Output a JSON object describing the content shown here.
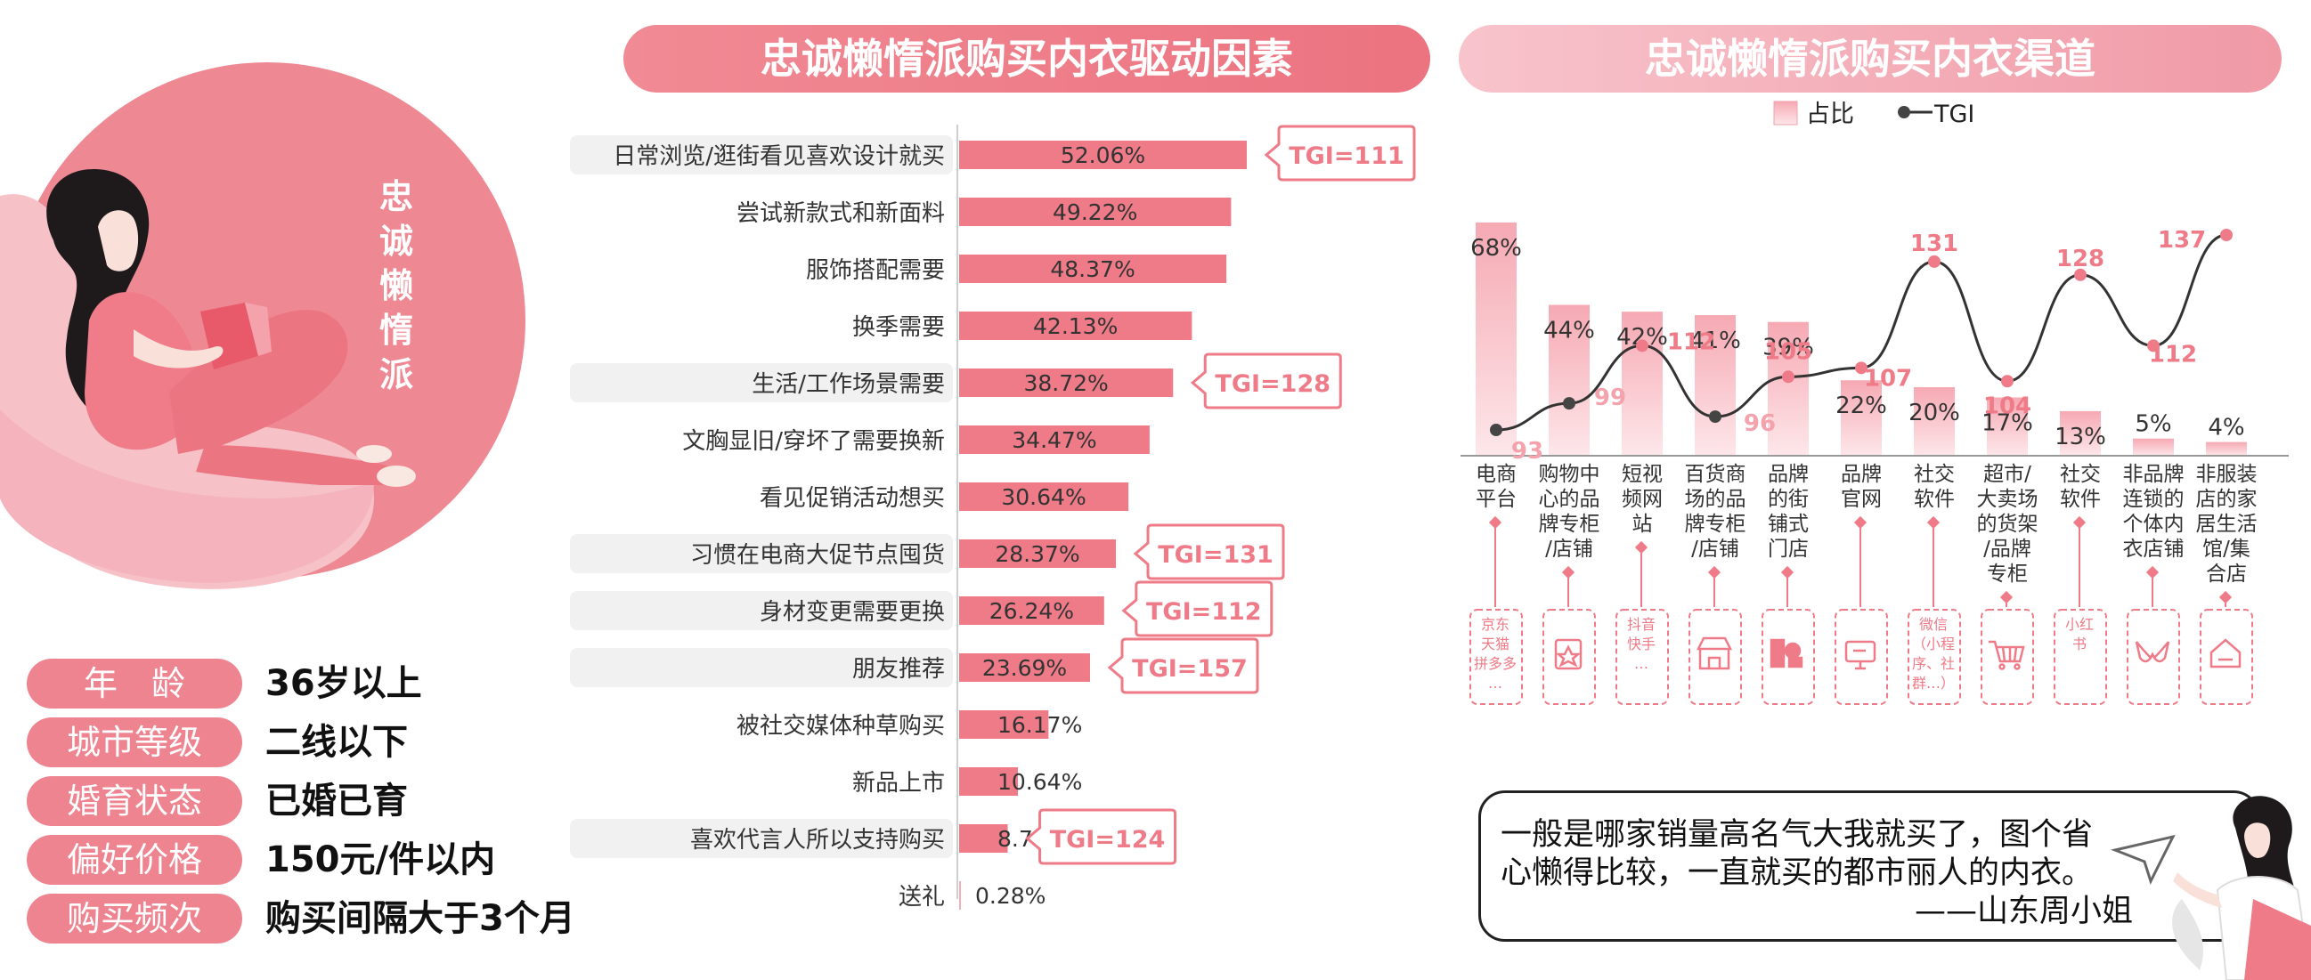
{
  "persona": {
    "title_chars": [
      "忠",
      "诚",
      "懒",
      "惰",
      "派"
    ],
    "profile": [
      {
        "label": "年　龄",
        "value": "36岁以上"
      },
      {
        "label": "城市等级",
        "value": "二线以下"
      },
      {
        "label": "婚育状态",
        "value": "已婚已育"
      },
      {
        "label": "偏好价格",
        "value": "150元/件以内"
      },
      {
        "label": "购买频次",
        "value": "购买间隔大于3个月"
      }
    ]
  },
  "headers": {
    "drivers": "忠诚懒惰派购买内衣驱动因素",
    "channels": "忠诚懒惰派购买内衣渠道"
  },
  "quote": {
    "lines": [
      "一般是哪家销量高名气大我就买了，图个省",
      "心懒得比较，一直就买的都市丽人的内衣。"
    ],
    "author": "——山东周小姐"
  },
  "colors": {
    "accent": "#ee7b87",
    "light_pink": "#f8c8ce",
    "highlight_row": "#f1f1f1",
    "line": "#333333"
  },
  "chart_data": [
    {
      "type": "bar",
      "orientation": "horizontal",
      "title": "忠诚懒惰派购买内衣驱动因素",
      "categories": [
        "日常浏览/逛街看见喜欢设计就买",
        "尝试新款式和新面料",
        "服饰搭配需要",
        "换季需要",
        "生活/工作场景需要",
        "文胸显旧/穿坏了需要换新",
        "看见促销活动想买",
        "习惯在电商大促节点囤货",
        "身材变更需要更换",
        "朋友推荐",
        "被社交媒体种草购买",
        "新品上市",
        "喜欢代言人所以支持购买",
        "送礼"
      ],
      "values": [
        52.06,
        49.22,
        48.37,
        42.13,
        38.72,
        34.47,
        30.64,
        28.37,
        26.24,
        23.69,
        16.17,
        10.64,
        8.79,
        0.28
      ],
      "value_labels": [
        "52.06%",
        "49.22%",
        "48.37%",
        "42.13%",
        "38.72%",
        "34.47%",
        "30.64%",
        "28.37%",
        "26.24%",
        "23.69%",
        "16.17%",
        "10.64%",
        "8.79%",
        "0.28%"
      ],
      "highlighted": [
        true,
        false,
        false,
        false,
        true,
        false,
        false,
        true,
        true,
        true,
        false,
        false,
        true,
        false
      ],
      "tgi_labels": [
        "TGI=111",
        "",
        "",
        "",
        "TGI=128",
        "",
        "",
        "TGI=131",
        "TGI=112",
        "TGI=157",
        "",
        "",
        "TGI=124",
        ""
      ],
      "xlim": [
        0,
        60
      ]
    },
    {
      "type": "bar",
      "secondary_type": "line",
      "title": "忠诚懒惰派购买内衣渠道",
      "legend": {
        "items": [
          "占比",
          "TGI"
        ],
        "placement": "top-center"
      },
      "categories": [
        [
          "电商",
          "平台"
        ],
        [
          "购物中",
          "心的品",
          "牌专柜",
          "/店铺"
        ],
        [
          "短视",
          "频网",
          "站"
        ],
        [
          "百货商",
          "场的品",
          "牌专柜",
          "/店铺"
        ],
        [
          "品牌",
          "的街",
          "铺式",
          "门店"
        ],
        [
          "品牌",
          "官网"
        ],
        [
          "社交",
          "软件"
        ],
        [
          "超市/",
          "大卖场",
          "的货架",
          "/品牌",
          "专柜"
        ],
        [
          "社交",
          "软件"
        ],
        [
          "非品牌",
          "连锁的",
          "个体内",
          "衣店铺"
        ],
        [
          "非服装",
          "店的家",
          "居生活",
          "馆/集",
          "合店"
        ]
      ],
      "series": [
        {
          "name": "占比",
          "values": [
            68,
            44,
            42,
            41,
            39,
            22,
            20,
            17,
            13,
            5,
            4
          ],
          "labels": [
            "68%",
            "44%",
            "42%",
            "41%",
            "39%",
            "22%",
            "20%",
            "17%",
            "13%",
            "5%",
            "4%"
          ]
        },
        {
          "name": "TGI",
          "values": [
            93,
            99,
            112,
            96,
            105,
            107,
            131,
            104,
            128,
            112,
            137
          ],
          "labels": [
            "93",
            "99",
            "112",
            "96",
            "105",
            "107",
            "131",
            "104",
            "128",
            "112",
            "137"
          ]
        }
      ],
      "examples": [
        [
          "京东",
          "天猫",
          "拼多多",
          "…"
        ],
        [],
        [
          "抖音",
          "快手",
          "…"
        ],
        [],
        [],
        [],
        [
          "微信",
          "（小程",
          "序、社",
          "群…）"
        ],
        [],
        [
          "小红",
          "书"
        ],
        [],
        []
      ],
      "example_icons": [
        "",
        "star-tag-icon",
        "",
        "storefront-icon",
        "shop-icon",
        "monitor-icon",
        "",
        "cart-icon",
        "",
        "bra-icon",
        "house-icon"
      ],
      "ylim": [
        0,
        75
      ],
      "tgi_range": [
        85,
        140
      ]
    }
  ]
}
